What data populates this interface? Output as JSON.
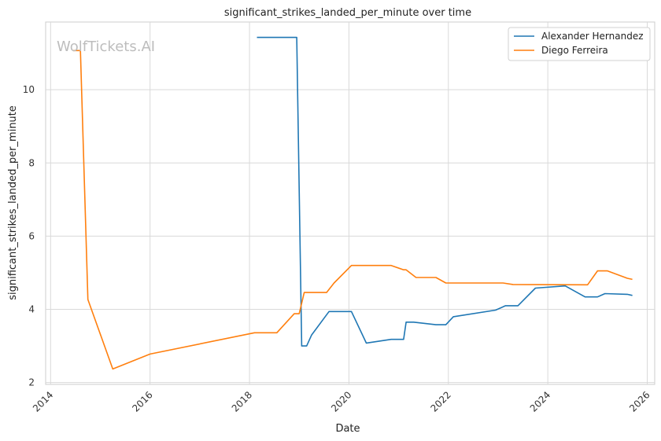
{
  "watermark": "WolfTickets.AI",
  "colors": {
    "series_0": "#1f77b4",
    "series_1": "#ff7f0e",
    "grid": "#d9d9d9",
    "axes": "#cccccc"
  },
  "chart_data": {
    "type": "line",
    "title": "significant_strikes_landed_per_minute over time",
    "xlabel": "Date",
    "ylabel": "significant_strikes_landed_per_minute",
    "xlim": [
      2013.9,
      2026.15
    ],
    "ylim": [
      1.95,
      11.85
    ],
    "xticks": [
      2014,
      2016,
      2018,
      2020,
      2022,
      2024,
      2026
    ],
    "xtick_labels": [
      "2014",
      "2016",
      "2018",
      "2020",
      "2022",
      "2024",
      "2026"
    ],
    "yticks": [
      2,
      4,
      6,
      8,
      10
    ],
    "ytick_labels": [
      "2",
      "4",
      "6",
      "8",
      "10"
    ],
    "grid": true,
    "legend_position": "top-right",
    "series": [
      {
        "name": "Alexander Hernandez",
        "x": [
          2018.15,
          2018.95,
          2019.05,
          2019.15,
          2019.25,
          2019.6,
          2020.05,
          2020.35,
          2020.6,
          2020.85,
          2021.1,
          2021.15,
          2021.3,
          2021.75,
          2021.95,
          2022.1,
          2022.95,
          2023.15,
          2023.4,
          2023.75,
          2024.35,
          2024.75,
          2025.0,
          2025.15,
          2025.6,
          2025.7
        ],
        "y": [
          11.43,
          11.43,
          3.0,
          3.0,
          3.3,
          3.94,
          3.94,
          3.08,
          3.13,
          3.18,
          3.18,
          3.65,
          3.65,
          3.58,
          3.58,
          3.8,
          3.98,
          4.1,
          4.1,
          4.58,
          4.64,
          4.34,
          4.34,
          4.43,
          4.41,
          4.38
        ]
      },
      {
        "name": "Diego Ferreira",
        "x": [
          2014.45,
          2014.6,
          2014.75,
          2015.25,
          2016.0,
          2018.1,
          2018.55,
          2018.9,
          2019.0,
          2019.1,
          2019.55,
          2019.7,
          2020.05,
          2020.85,
          2021.1,
          2021.15,
          2021.35,
          2021.75,
          2021.95,
          2023.1,
          2023.3,
          2024.8,
          2025.0,
          2025.2,
          2025.6,
          2025.7
        ],
        "y": [
          11.07,
          11.07,
          4.27,
          2.37,
          2.78,
          3.36,
          3.36,
          3.88,
          3.88,
          4.46,
          4.46,
          4.72,
          5.2,
          5.2,
          5.08,
          5.08,
          4.87,
          4.87,
          4.72,
          4.72,
          4.68,
          4.67,
          5.05,
          5.05,
          4.85,
          4.82
        ]
      }
    ]
  }
}
